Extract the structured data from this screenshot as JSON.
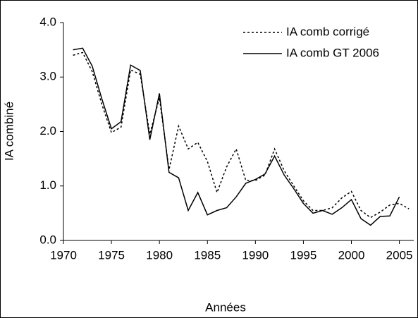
{
  "chart_data": {
    "type": "line",
    "x_label": "Années",
    "y_label": "IA combiné",
    "x": [
      1971,
      1972,
      1973,
      1974,
      1975,
      1976,
      1977,
      1978,
      1979,
      1980,
      1981,
      1982,
      1983,
      1984,
      1985,
      1986,
      1987,
      1988,
      1989,
      1990,
      1991,
      1992,
      1993,
      1994,
      1995,
      1996,
      1997,
      1998,
      1999,
      2000,
      2001,
      2002,
      2003,
      2004,
      2005,
      2006
    ],
    "series": [
      {
        "name": "IA comb corrigé",
        "color": "#000000",
        "dash": true,
        "values": [
          3.4,
          3.45,
          3.1,
          2.5,
          1.98,
          2.08,
          3.13,
          3.05,
          1.95,
          2.62,
          1.3,
          2.1,
          1.68,
          1.8,
          1.45,
          0.88,
          1.35,
          1.68,
          1.1,
          1.1,
          1.2,
          1.68,
          1.28,
          1.0,
          0.73,
          0.55,
          0.55,
          0.6,
          0.78,
          0.9,
          0.55,
          0.42,
          0.52,
          0.65,
          0.68,
          0.58
        ]
      },
      {
        "name": "IA comb GT 2006",
        "color": "#000000",
        "dash": false,
        "values": [
          3.5,
          3.53,
          3.2,
          2.6,
          2.05,
          2.18,
          3.22,
          3.12,
          1.85,
          2.7,
          1.25,
          1.15,
          0.55,
          0.88,
          0.47,
          0.55,
          0.6,
          0.8,
          1.05,
          1.12,
          1.22,
          1.55,
          1.2,
          0.95,
          0.68,
          0.5,
          0.55,
          0.48,
          0.6,
          0.75,
          0.4,
          0.28,
          0.44,
          0.45,
          0.8,
          null
        ]
      }
    ],
    "xlim": [
      1970,
      2006.5
    ],
    "xticks": [
      1970,
      1975,
      1980,
      1985,
      1990,
      1995,
      2000,
      2005
    ],
    "ylim": [
      0,
      4
    ],
    "yticks": [
      {
        "value": 0,
        "label": "0.0"
      },
      {
        "value": 1,
        "label": "1.0"
      },
      {
        "value": 2,
        "label": "2.0"
      },
      {
        "value": 3,
        "label": "3.0"
      },
      {
        "value": 4,
        "label": "4.0"
      }
    ],
    "legend": "top-right"
  }
}
